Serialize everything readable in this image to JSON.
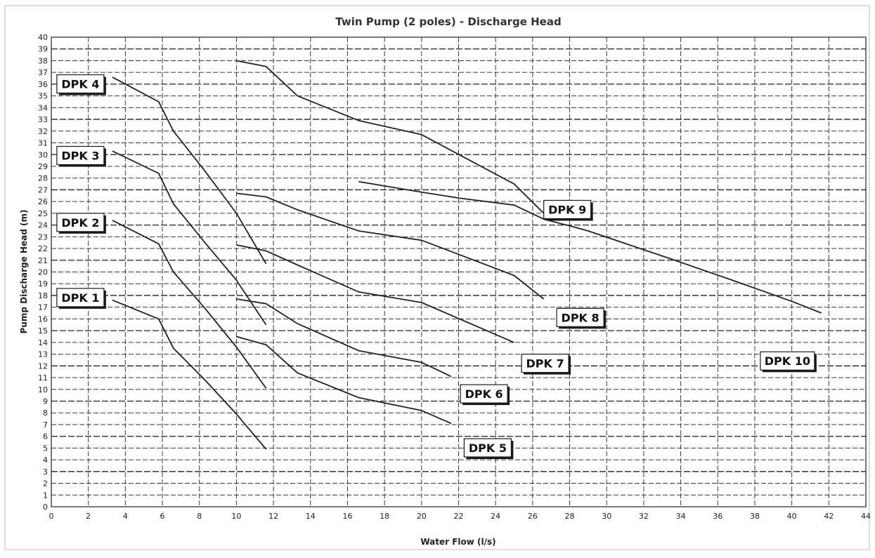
{
  "chart_data": {
    "type": "line",
    "title": "Twin Pump (2 poles) - Discharge Head",
    "xlabel": "Water Flow (l/s)",
    "ylabel": "Pump Discharge Head (m)",
    "xlim": [
      0,
      44
    ],
    "ylim": [
      0,
      40
    ],
    "x_ticks": [
      0,
      2,
      4,
      6,
      8,
      10,
      12,
      14,
      16,
      18,
      20,
      22,
      24,
      26,
      28,
      30,
      32,
      34,
      36,
      38,
      40,
      42,
      44
    ],
    "y_ticks": [
      0,
      1,
      2,
      3,
      4,
      5,
      6,
      7,
      8,
      9,
      10,
      11,
      12,
      13,
      14,
      15,
      16,
      17,
      18,
      19,
      20,
      21,
      22,
      23,
      24,
      25,
      26,
      27,
      28,
      29,
      30,
      31,
      32,
      33,
      34,
      35,
      36,
      37,
      38,
      39,
      40
    ],
    "grid": true,
    "legend": "inline labels",
    "series": [
      {
        "name": "DPK 1",
        "x": [
          3.3,
          5.8,
          6.6,
          8.3,
          10.0,
          11.6
        ],
        "y": [
          17.6,
          16.0,
          13.5,
          10.8,
          7.9,
          4.9
        ],
        "label_anchor": {
          "x": 0.3,
          "y": 18.6
        }
      },
      {
        "name": "DPK 2",
        "x": [
          3.3,
          5.8,
          6.6,
          8.3,
          10.0,
          11.6
        ],
        "y": [
          24.4,
          22.4,
          20.0,
          16.9,
          13.6,
          10.1
        ],
        "label_anchor": {
          "x": 0.3,
          "y": 25.0
        }
      },
      {
        "name": "DPK 3",
        "x": [
          3.3,
          5.8,
          6.6,
          8.3,
          10.0,
          11.6
        ],
        "y": [
          30.3,
          28.4,
          25.8,
          22.5,
          19.3,
          15.5
        ],
        "label_anchor": {
          "x": 0.3,
          "y": 30.7
        }
      },
      {
        "name": "DPK 4",
        "x": [
          3.3,
          5.8,
          6.6,
          8.3,
          10.0,
          11.6
        ],
        "y": [
          36.6,
          34.5,
          32.0,
          28.6,
          25.0,
          20.7
        ],
        "label_anchor": {
          "x": 0.3,
          "y": 36.8
        }
      },
      {
        "name": "DPK 5",
        "x": [
          10.0,
          11.6,
          13.3,
          16.6,
          20.0,
          21.6
        ],
        "y": [
          14.5,
          13.8,
          11.4,
          9.3,
          8.2,
          7.1
        ],
        "label_anchor": {
          "x": 22.3,
          "y": 5.8
        }
      },
      {
        "name": "DPK 6",
        "x": [
          10.0,
          11.6,
          13.3,
          16.6,
          20.0,
          21.6
        ],
        "y": [
          17.7,
          17.3,
          15.6,
          13.3,
          12.3,
          11.1
        ],
        "label_anchor": {
          "x": 22.1,
          "y": 10.4
        }
      },
      {
        "name": "DPK 7",
        "x": [
          10.0,
          11.6,
          13.3,
          16.6,
          20.0,
          25.0
        ],
        "y": [
          22.3,
          21.8,
          20.6,
          18.3,
          17.4,
          14.0
        ],
        "label_anchor": {
          "x": 25.4,
          "y": 13.0
        }
      },
      {
        "name": "DPK 8",
        "x": [
          10.0,
          11.6,
          13.3,
          16.6,
          20.0,
          25.0,
          26.6
        ],
        "y": [
          26.7,
          26.4,
          25.3,
          23.5,
          22.7,
          19.7,
          17.7
        ],
        "label_anchor": {
          "x": 27.3,
          "y": 16.9
        }
      },
      {
        "name": "DPK 9",
        "x": [
          10.0,
          11.6,
          13.3,
          16.6,
          20.0,
          25.0,
          26.6
        ],
        "y": [
          38.0,
          37.5,
          35.0,
          32.9,
          31.7,
          27.5,
          25.0
        ],
        "label_anchor": {
          "x": 26.6,
          "y": 26.1
        }
      },
      {
        "name": "DPK 10",
        "x": [
          16.6,
          20.0,
          22.0,
          25.0,
          26.6,
          28.3,
          29.0,
          33.3,
          36.6,
          40.0,
          41.6
        ],
        "y": [
          27.7,
          26.8,
          26.3,
          25.7,
          24.5,
          23.8,
          23.5,
          21.2,
          19.4,
          17.5,
          16.5
        ],
        "label_anchor": {
          "x": 38.3,
          "y": 13.2
        }
      }
    ]
  }
}
